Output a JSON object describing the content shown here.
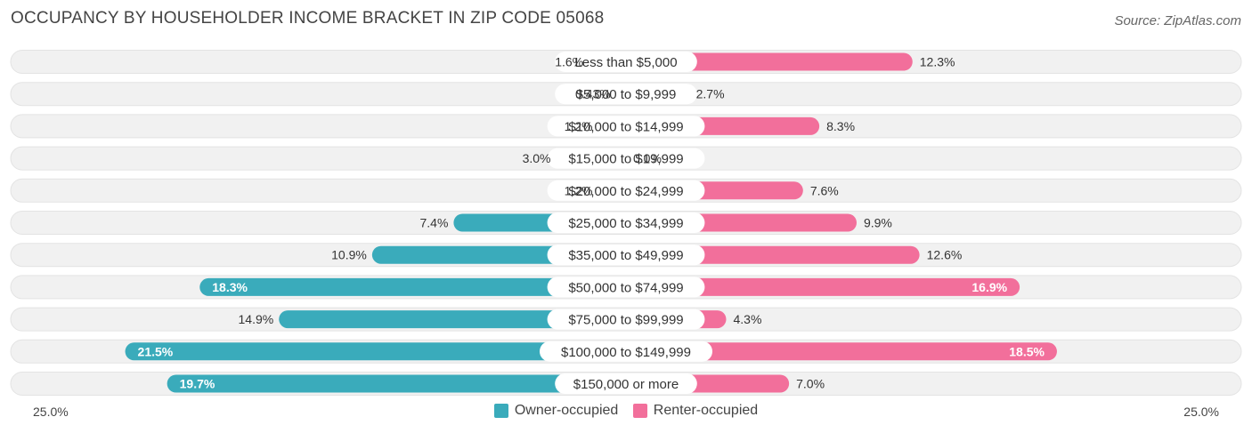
{
  "chart_data": {
    "type": "bar",
    "orientation": "diverging-horizontal",
    "title": "OCCUPANCY BY HOUSEHOLDER INCOME BRACKET IN ZIP CODE 05068",
    "source": "Source: ZipAtlas.com",
    "categories": [
      "Less than $5,000",
      "$5,000 to $9,999",
      "$10,000 to $14,999",
      "$15,000 to $19,999",
      "$20,000 to $24,999",
      "$25,000 to $34,999",
      "$35,000 to $49,999",
      "$50,000 to $74,999",
      "$75,000 to $99,999",
      "$100,000 to $149,999",
      "$150,000 or more"
    ],
    "series": [
      {
        "name": "Owner-occupied",
        "color": "#3aabbb",
        "values": [
          1.6,
          0.43,
          1.2,
          3.0,
          1.2,
          7.4,
          10.9,
          18.3,
          14.9,
          21.5,
          19.7
        ],
        "labels": [
          "1.6%",
          "0.43%",
          "1.2%",
          "3.0%",
          "1.2%",
          "7.4%",
          "10.9%",
          "18.3%",
          "14.9%",
          "21.5%",
          "19.7%"
        ]
      },
      {
        "name": "Renter-occupied",
        "color": "#f26f9b",
        "values": [
          12.3,
          2.7,
          8.3,
          0.0,
          7.6,
          9.9,
          12.6,
          16.9,
          4.3,
          18.5,
          7.0
        ],
        "labels": [
          "12.3%",
          "2.7%",
          "8.3%",
          "0.0%",
          "7.6%",
          "9.9%",
          "12.6%",
          "16.9%",
          "4.3%",
          "18.5%",
          "7.0%"
        ]
      }
    ],
    "xlim": [
      -25,
      25
    ],
    "axis_left_label": "25.0%",
    "axis_right_label": "25.0%",
    "legend_position": "bottom-center"
  }
}
